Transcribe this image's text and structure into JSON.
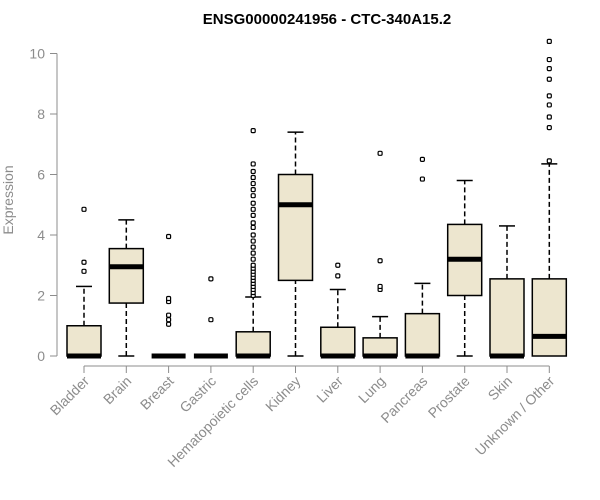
{
  "chart_data": {
    "type": "boxplot",
    "title": "ENSG00000241956 - CTC-340A15.2",
    "xlabel": "",
    "ylabel": "Expression",
    "ylim": [
      0,
      10.4
    ],
    "yticks": [
      0,
      2,
      4,
      6,
      8,
      10
    ],
    "grid": false,
    "box_fill": "#ede6cf",
    "box_stroke": "#000000",
    "median_color": "#000000",
    "axis_color": "#8c8c8c",
    "categories": [
      "Bladder",
      "Brain",
      "Breast",
      "Gastric",
      "Hematopoietic cells",
      "Kidney",
      "Liver",
      "Lung",
      "Pancreas",
      "Prostate",
      "Skin",
      "Unknown / Other"
    ],
    "boxes": [
      {
        "category": "Bladder",
        "min": 0,
        "q1": 0,
        "median": 0,
        "q3": 1.0,
        "max": 2.3,
        "outliers": [
          2.8,
          3.1,
          4.85
        ]
      },
      {
        "category": "Brain",
        "min": 0,
        "q1": 1.75,
        "median": 2.95,
        "q3": 3.55,
        "max": 4.5,
        "outliers": []
      },
      {
        "category": "Breast",
        "min": 0,
        "q1": 0,
        "median": 0,
        "q3": 0,
        "max": 0,
        "outliers": [
          1.05,
          1.2,
          1.35,
          1.8,
          1.9,
          3.95
        ]
      },
      {
        "category": "Gastric",
        "min": 0,
        "q1": 0,
        "median": 0,
        "q3": 0,
        "max": 0,
        "outliers": [
          1.2,
          2.55
        ]
      },
      {
        "category": "Hematopoietic cells",
        "min": 0,
        "q1": 0,
        "median": 0,
        "q3": 0.8,
        "max": 1.95,
        "outliers": [
          2.0,
          2.1,
          2.2,
          2.3,
          2.4,
          2.5,
          2.6,
          2.7,
          2.8,
          2.9,
          3.0,
          3.2,
          3.4,
          3.6,
          3.8,
          4.0,
          4.25,
          4.4,
          4.65,
          4.85,
          5.05,
          5.3,
          5.5,
          5.7,
          5.9,
          6.1,
          6.35,
          7.45
        ]
      },
      {
        "category": "Kidney",
        "min": 0,
        "q1": 2.5,
        "median": 5.0,
        "q3": 6.0,
        "max": 7.4,
        "outliers": []
      },
      {
        "category": "Liver",
        "min": 0,
        "q1": 0,
        "median": 0,
        "q3": 0.95,
        "max": 2.2,
        "outliers": [
          2.65,
          3.0
        ]
      },
      {
        "category": "Lung",
        "min": 0,
        "q1": 0,
        "median": 0,
        "q3": 0.6,
        "max": 1.3,
        "outliers": [
          2.2,
          2.3,
          3.15,
          6.7
        ]
      },
      {
        "category": "Pancreas",
        "min": 0,
        "q1": 0,
        "median": 0,
        "q3": 1.4,
        "max": 2.4,
        "outliers": [
          5.85,
          6.5
        ]
      },
      {
        "category": "Prostate",
        "min": 0,
        "q1": 2.0,
        "median": 3.2,
        "q3": 4.35,
        "max": 5.8,
        "outliers": []
      },
      {
        "category": "Skin",
        "min": 0,
        "q1": 0,
        "median": 0,
        "q3": 2.55,
        "max": 4.3,
        "outliers": []
      },
      {
        "category": "Unknown / Other",
        "min": 0,
        "q1": 0,
        "median": 0.65,
        "q3": 2.55,
        "max": 6.35,
        "outliers": [
          6.45,
          7.55,
          7.9,
          8.3,
          8.6,
          9.15,
          9.5,
          9.8,
          10.4
        ]
      }
    ]
  }
}
